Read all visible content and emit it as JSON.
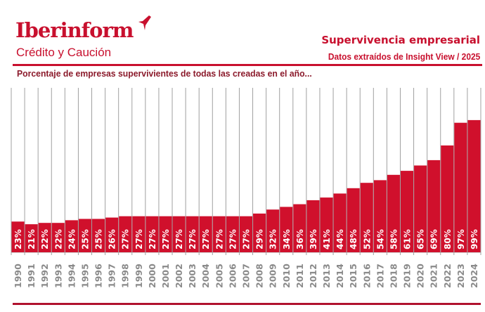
{
  "header": {
    "logo_text": "Iberinform",
    "tagline": "Crédito y Caución",
    "title": "Supervivencia empresarial",
    "source": "Datos extraídos de Insight View / 2025",
    "subtitle": "Porcentaje de empresas supervivientes de todas las creadas en el año..."
  },
  "colors": {
    "brand": "#c8102e",
    "bar": "#d0102c",
    "grid": "#a0a0a0",
    "year_label": "#8a8a8a"
  },
  "chart_data": {
    "type": "bar",
    "title": "Supervivencia empresarial",
    "subtitle": "Porcentaje de empresas supervivientes de todas las creadas en el año...",
    "xlabel": "",
    "ylabel": "",
    "ylim": [
      0,
      100
    ],
    "grid": "vertical separators",
    "categories": [
      "1990",
      "1991",
      "1992",
      "1993",
      "1994",
      "1995",
      "1996",
      "1997",
      "1998",
      "1999",
      "2000",
      "2001",
      "2002",
      "2003",
      "2004",
      "2005",
      "2006",
      "2007",
      "2008",
      "2009",
      "2010",
      "2011",
      "2012",
      "2013",
      "2014",
      "2015",
      "2016",
      "2017",
      "2018",
      "2019",
      "2020",
      "2021",
      "2022",
      "2023",
      "2024"
    ],
    "values": [
      23,
      21,
      22,
      22,
      24,
      25,
      25,
      26,
      27,
      27,
      27,
      27,
      27,
      27,
      27,
      27,
      27,
      27,
      29,
      32,
      34,
      36,
      39,
      41,
      44,
      48,
      52,
      54,
      58,
      61,
      65,
      69,
      80,
      97,
      99
    ],
    "labels": [
      "23%",
      "21%",
      "22%",
      "22%",
      "24%",
      "25%",
      "25%",
      "26%",
      "27%",
      "27%",
      "27%",
      "27%",
      "27%",
      "27%",
      "27%",
      "27%",
      "27%",
      "27%",
      "29%",
      "32%",
      "34%",
      "36%",
      "39%",
      "41%",
      "44%",
      "48%",
      "52%",
      "54%",
      "58%",
      "61%",
      "65%",
      "69%",
      "80%",
      "97%",
      "99%"
    ]
  }
}
